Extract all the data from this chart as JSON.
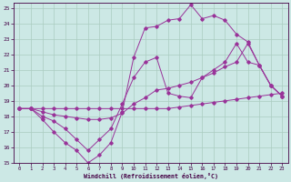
{
  "xlabel": "Windchill (Refroidissement éolien,°C)",
  "bg_color": "#cce8e5",
  "grid_color": "#aaccc0",
  "line_color": "#993399",
  "xlim": [
    0,
    23
  ],
  "ylim": [
    15,
    25
  ],
  "yticks": [
    15,
    16,
    17,
    18,
    19,
    20,
    21,
    22,
    23,
    24,
    25
  ],
  "xticks": [
    0,
    1,
    2,
    3,
    4,
    5,
    6,
    7,
    8,
    9,
    10,
    11,
    12,
    13,
    14,
    15,
    16,
    17,
    18,
    19,
    20,
    21,
    22,
    23
  ],
  "series": [
    {
      "x": [
        0,
        1,
        2,
        3,
        4,
        5,
        6,
        7,
        8,
        9,
        10,
        11,
        12,
        13,
        14,
        15,
        16,
        17,
        18,
        19,
        20,
        21,
        22,
        23
      ],
      "y": [
        18.5,
        18.5,
        18.5,
        18.5,
        18.5,
        18.5,
        18.5,
        18.5,
        18.5,
        18.5,
        18.5,
        18.5,
        18.5,
        18.5,
        18.6,
        18.7,
        18.8,
        18.9,
        19.0,
        19.1,
        19.2,
        19.3,
        19.4,
        19.5
      ]
    },
    {
      "x": [
        0,
        1,
        2,
        3,
        4,
        5,
        6,
        7,
        8,
        9,
        10,
        11,
        12,
        13,
        14,
        15,
        16,
        17,
        18,
        19,
        20,
        21,
        22,
        23
      ],
      "y": [
        18.5,
        18.5,
        18.3,
        18.1,
        18.0,
        17.9,
        17.8,
        17.8,
        17.9,
        18.2,
        18.8,
        19.2,
        19.7,
        19.8,
        20.0,
        20.2,
        20.5,
        20.8,
        21.2,
        21.5,
        22.7,
        21.3,
        20.0,
        19.3
      ]
    },
    {
      "x": [
        0,
        1,
        2,
        3,
        4,
        5,
        6,
        7,
        8,
        9,
        10,
        11,
        12,
        13,
        14,
        15,
        16,
        17,
        18,
        19,
        20,
        21,
        22,
        23
      ],
      "y": [
        18.5,
        18.5,
        17.8,
        17.0,
        16.3,
        15.8,
        15.0,
        15.5,
        16.3,
        18.3,
        21.8,
        23.7,
        23.8,
        24.2,
        24.3,
        25.2,
        24.3,
        24.5,
        24.2,
        23.3,
        22.8,
        21.3,
        20.0,
        19.3
      ]
    },
    {
      "x": [
        0,
        1,
        2,
        3,
        4,
        5,
        6,
        7,
        8,
        9,
        10,
        11,
        12,
        13,
        14,
        15,
        16,
        17,
        18,
        19,
        20,
        21,
        22,
        23
      ],
      "y": [
        18.5,
        18.5,
        18.0,
        17.7,
        17.2,
        16.5,
        15.8,
        16.5,
        17.2,
        18.8,
        20.5,
        21.5,
        21.8,
        19.5,
        19.3,
        19.2,
        20.5,
        21.0,
        21.5,
        22.7,
        21.5,
        21.3,
        20.0,
        19.3
      ]
    }
  ]
}
